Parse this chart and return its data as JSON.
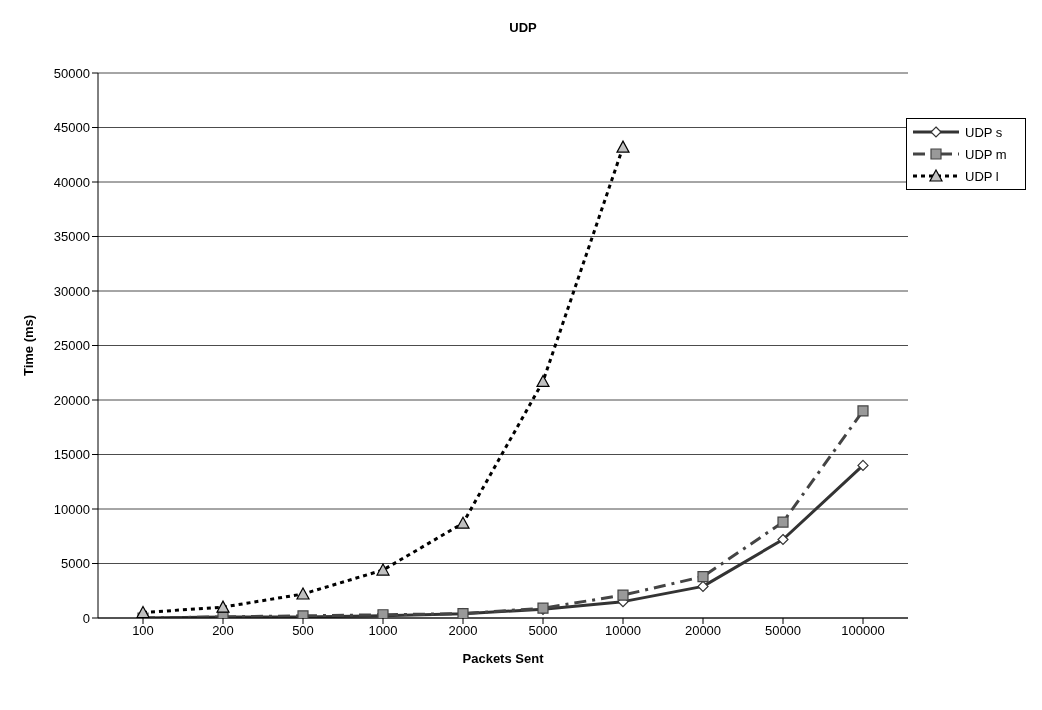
{
  "chart_data": {
    "type": "line",
    "title": "UDP",
    "xlabel": "Packets Sent",
    "ylabel": "Time (ms)",
    "categories": [
      "100",
      "200",
      "500",
      "1000",
      "2000",
      "5000",
      "10000",
      "20000",
      "50000",
      "100000"
    ],
    "series": [
      {
        "name": "UDP s",
        "color": "#333333",
        "marker": "diamond",
        "line_style": "solid",
        "values": [
          0,
          100,
          100,
          200,
          400,
          800,
          1500,
          2900,
          7200,
          14000
        ]
      },
      {
        "name": "UDP m",
        "color": "#444444",
        "marker": "square",
        "line_style": "dashdot",
        "values": [
          0,
          100,
          200,
          300,
          400,
          900,
          2100,
          3800,
          8800,
          19000
        ]
      },
      {
        "name": "UDP l",
        "color": "#000000",
        "marker": "triangle",
        "line_style": "dotted",
        "values": [
          500,
          1000,
          2200,
          4400,
          8700,
          21700,
          43200,
          null,
          null,
          null
        ]
      }
    ],
    "ylim": [
      0,
      50000
    ],
    "yticks": [
      0,
      5000,
      10000,
      15000,
      20000,
      25000,
      30000,
      35000,
      40000,
      45000,
      50000
    ],
    "grid": "y",
    "legend": "top right"
  }
}
